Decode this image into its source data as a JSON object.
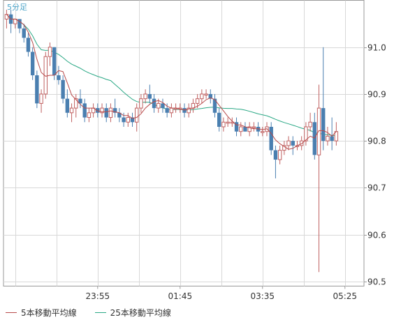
{
  "chart_data": {
    "type": "candlestick",
    "period_label": "5分足",
    "y_ticks": [
      90.5,
      90.6,
      90.7,
      90.8,
      90.9,
      91.0
    ],
    "x_ticks": [
      "23:55",
      "01:45",
      "03:35",
      "05:25"
    ],
    "ylim": [
      90.49,
      91.1
    ],
    "grid": true,
    "legend": [
      {
        "name": "5本移動平均線",
        "color": "#b84a4a"
      },
      {
        "name": "25本移動平均線",
        "color": "#2aa885"
      }
    ],
    "colors": {
      "up": "#c06060",
      "down": "#4a7fb0",
      "ma5": "#b84a4a",
      "ma25": "#2aa885",
      "grid": "#d8d8d8"
    },
    "candles": [
      [
        91.06,
        91.08,
        91.04,
        91.07
      ],
      [
        91.07,
        91.08,
        91.03,
        91.05
      ],
      [
        91.05,
        91.06,
        91.04,
        91.06
      ],
      [
        91.06,
        91.06,
        91.03,
        91.04
      ],
      [
        91.04,
        91.05,
        91.01,
        91.02
      ],
      [
        91.02,
        91.03,
        90.98,
        90.99
      ],
      [
        90.99,
        91.0,
        90.93,
        90.94
      ],
      [
        90.94,
        90.95,
        90.87,
        90.88
      ],
      [
        90.88,
        90.91,
        90.86,
        90.9
      ],
      [
        90.9,
        90.99,
        90.89,
        90.98
      ],
      [
        90.98,
        91.01,
        90.96,
        91.0
      ],
      [
        91.0,
        91.0,
        90.93,
        90.94
      ],
      [
        90.94,
        90.96,
        90.92,
        90.93
      ],
      [
        90.93,
        90.94,
        90.88,
        90.89
      ],
      [
        90.89,
        90.91,
        90.85,
        90.86
      ],
      [
        90.86,
        90.88,
        90.84,
        90.87
      ],
      [
        90.87,
        90.9,
        90.85,
        90.89
      ],
      [
        90.89,
        90.91,
        90.87,
        90.88
      ],
      [
        90.88,
        90.89,
        90.84,
        90.85
      ],
      [
        90.85,
        90.87,
        90.84,
        90.86
      ],
      [
        90.86,
        90.88,
        90.85,
        90.87
      ],
      [
        90.87,
        90.88,
        90.85,
        90.86
      ],
      [
        90.86,
        90.88,
        90.85,
        90.87
      ],
      [
        90.87,
        90.88,
        90.84,
        90.85
      ],
      [
        90.85,
        90.88,
        90.84,
        90.87
      ],
      [
        90.87,
        90.89,
        90.85,
        90.86
      ],
      [
        90.86,
        90.87,
        90.84,
        90.85
      ],
      [
        90.85,
        90.86,
        90.83,
        90.84
      ],
      [
        90.84,
        90.86,
        90.83,
        90.85
      ],
      [
        90.85,
        90.86,
        90.83,
        90.84
      ],
      [
        90.84,
        90.88,
        90.82,
        90.87
      ],
      [
        90.87,
        90.9,
        90.86,
        90.89
      ],
      [
        90.89,
        90.91,
        90.88,
        90.9
      ],
      [
        90.9,
        90.92,
        90.88,
        90.89
      ],
      [
        90.89,
        90.9,
        90.86,
        90.87
      ],
      [
        90.87,
        90.89,
        90.86,
        90.88
      ],
      [
        90.88,
        90.89,
        90.86,
        90.87
      ],
      [
        90.87,
        90.88,
        90.85,
        90.86
      ],
      [
        90.86,
        90.88,
        90.85,
        90.87
      ],
      [
        90.87,
        90.88,
        90.86,
        90.87
      ],
      [
        90.87,
        90.88,
        90.86,
        90.87
      ],
      [
        90.87,
        90.88,
        90.85,
        90.86
      ],
      [
        90.86,
        90.88,
        90.85,
        90.87
      ],
      [
        90.87,
        90.89,
        90.86,
        90.88
      ],
      [
        90.88,
        90.9,
        90.87,
        90.89
      ],
      [
        90.89,
        90.91,
        90.88,
        90.9
      ],
      [
        90.9,
        90.91,
        90.89,
        90.9
      ],
      [
        90.9,
        90.91,
        90.88,
        90.89
      ],
      [
        90.89,
        90.9,
        90.85,
        90.86
      ],
      [
        90.86,
        90.87,
        90.82,
        90.83
      ],
      [
        90.83,
        90.85,
        90.82,
        90.84
      ],
      [
        90.84,
        90.85,
        90.83,
        90.84
      ],
      [
        90.84,
        90.85,
        90.83,
        90.84
      ],
      [
        90.84,
        90.85,
        90.81,
        90.82
      ],
      [
        90.82,
        90.84,
        90.81,
        90.83
      ],
      [
        90.83,
        90.84,
        90.82,
        90.82
      ],
      [
        90.82,
        90.84,
        90.81,
        90.83
      ],
      [
        90.83,
        90.84,
        90.82,
        90.83
      ],
      [
        90.83,
        90.84,
        90.81,
        90.82
      ],
      [
        90.82,
        90.83,
        90.81,
        90.82
      ],
      [
        90.82,
        90.84,
        90.81,
        90.83
      ],
      [
        90.83,
        90.84,
        90.77,
        90.78
      ],
      [
        90.78,
        90.79,
        90.72,
        90.76
      ],
      [
        90.76,
        90.79,
        90.75,
        90.78
      ],
      [
        90.78,
        90.8,
        90.77,
        90.79
      ],
      [
        90.79,
        90.81,
        90.78,
        90.8
      ],
      [
        90.8,
        90.81,
        90.77,
        90.79
      ],
      [
        90.79,
        90.8,
        90.78,
        90.79
      ],
      [
        90.79,
        90.81,
        90.78,
        90.8
      ],
      [
        90.8,
        90.84,
        90.79,
        90.83
      ],
      [
        90.83,
        90.86,
        90.82,
        90.84
      ],
      [
        90.84,
        90.86,
        90.76,
        90.77
      ],
      [
        90.77,
        90.92,
        90.52,
        90.87
      ],
      [
        90.87,
        91.0,
        90.78,
        90.8
      ],
      [
        90.8,
        90.83,
        90.79,
        90.81
      ],
      [
        90.81,
        90.85,
        90.78,
        90.8
      ],
      [
        90.8,
        90.84,
        90.79,
        90.82
      ]
    ]
  }
}
